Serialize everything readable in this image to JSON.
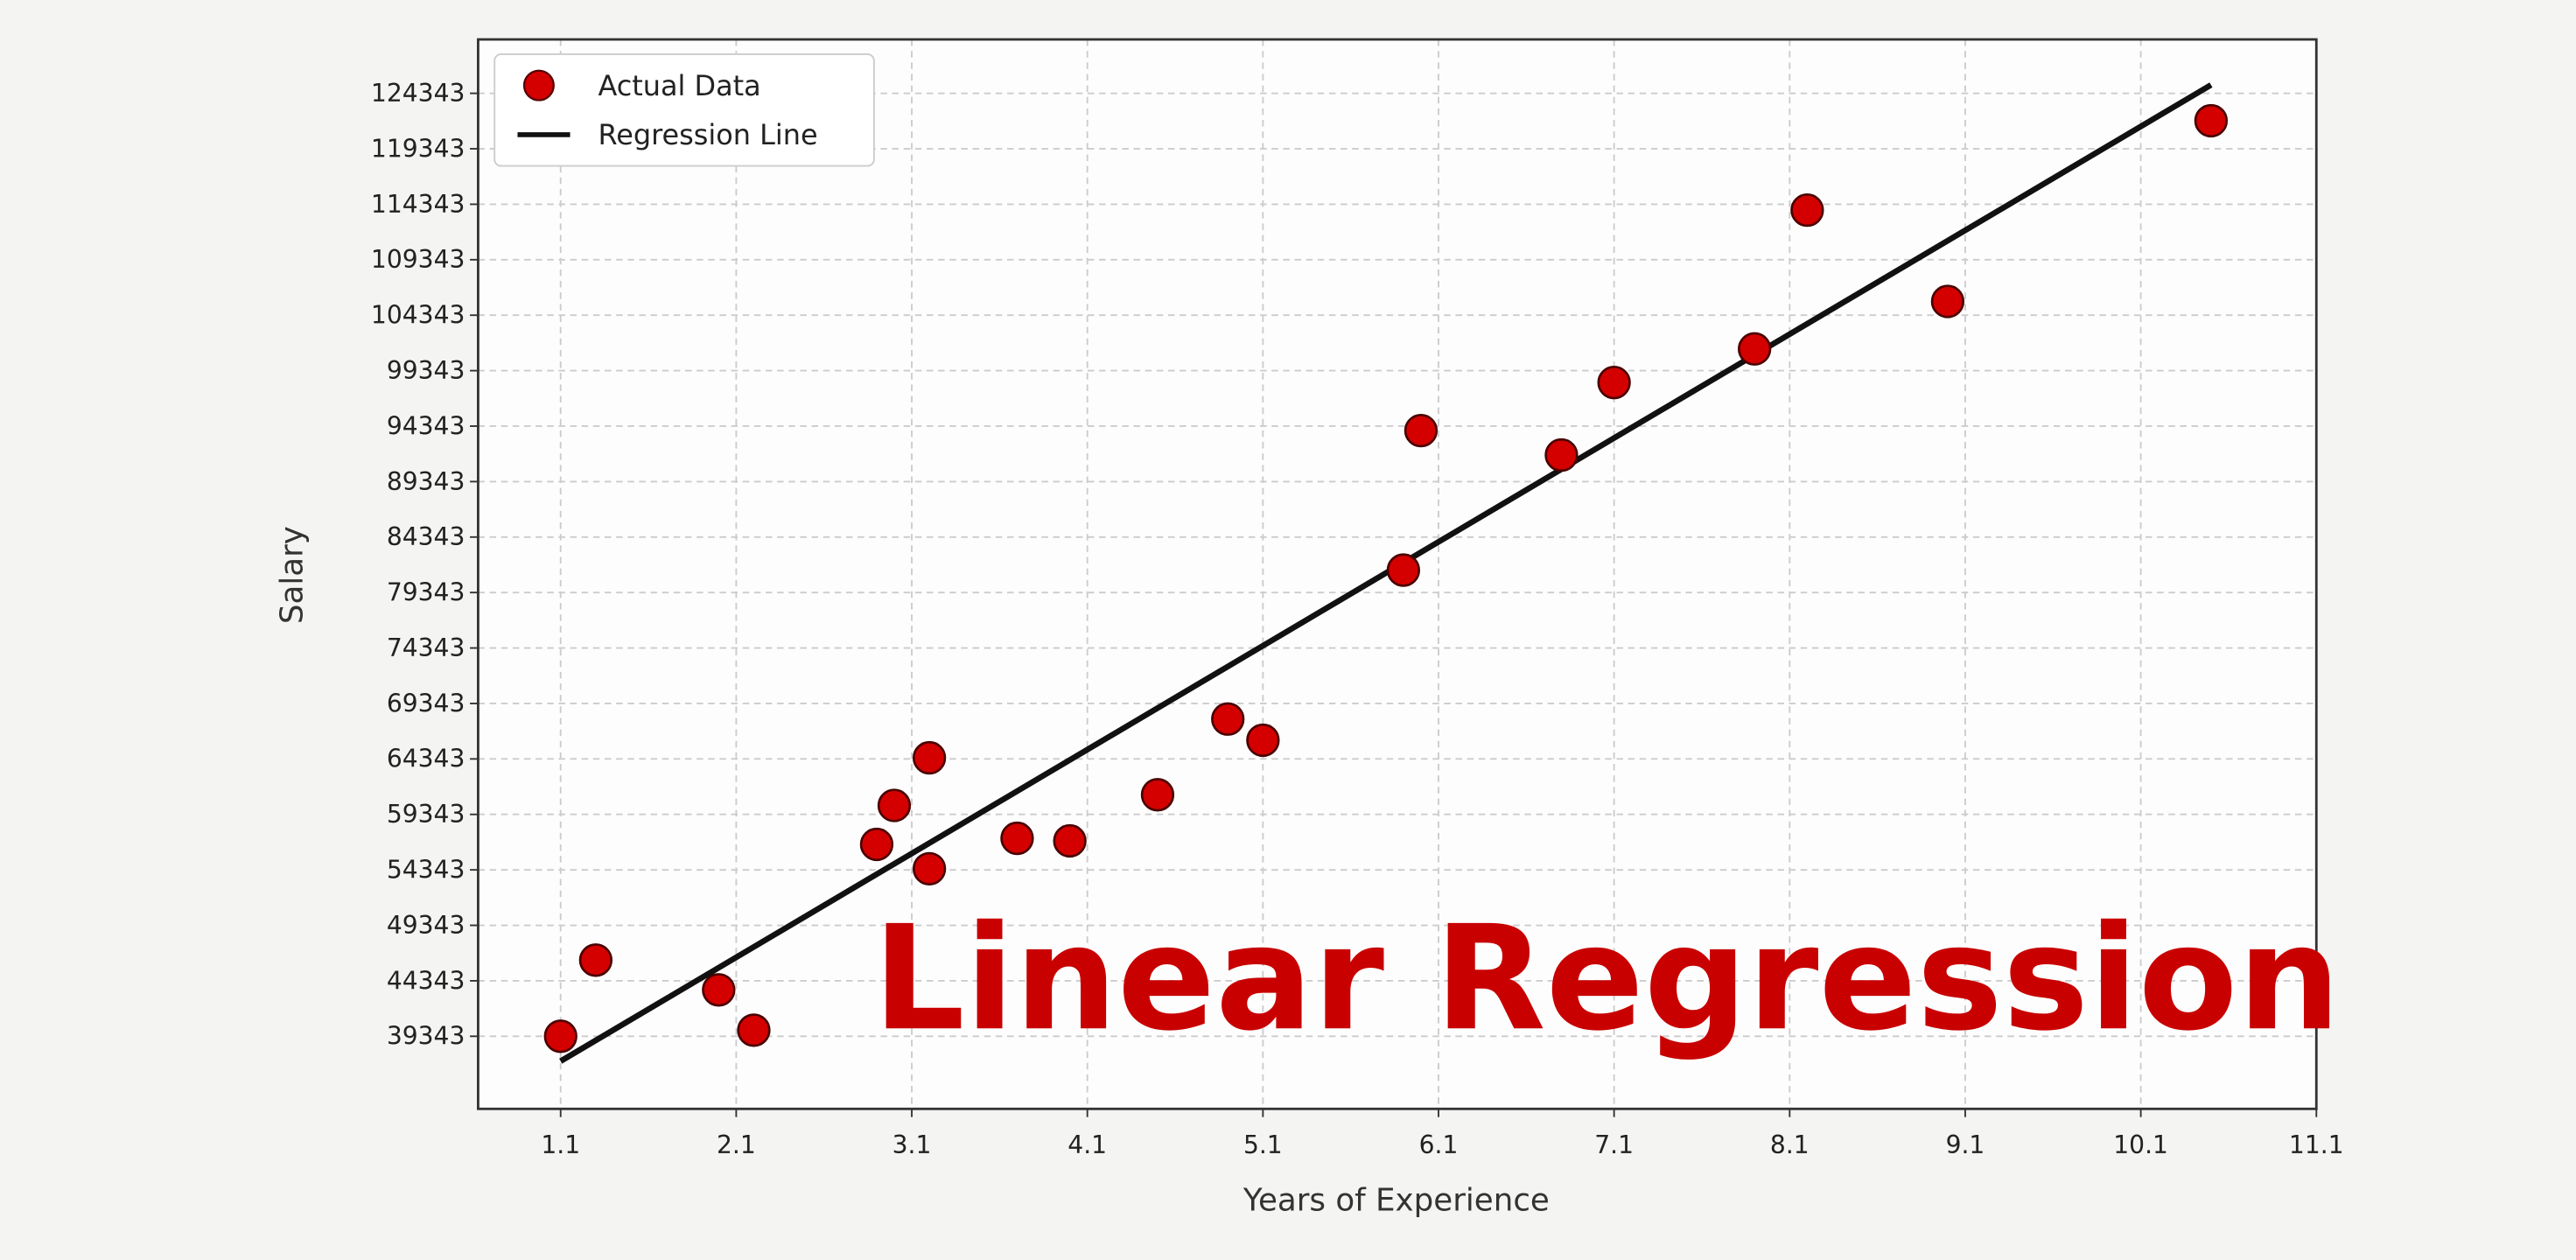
{
  "chart_data": {
    "type": "scatter",
    "xlabel": "Years of Experience",
    "ylabel": "Salary",
    "xlim": [
      0.63,
      11.1
    ],
    "ylim": [
      32800,
      129200
    ],
    "x_ticks": [
      "1.1",
      "2.1",
      "3.1",
      "4.1",
      "5.1",
      "6.1",
      "7.1",
      "8.1",
      "9.1",
      "10.1",
      "11.1"
    ],
    "y_ticks": [
      "39343",
      "44343",
      "49343",
      "54343",
      "59343",
      "64343",
      "69343",
      "74343",
      "79343",
      "84343",
      "89343",
      "94343",
      "99343",
      "104343",
      "109343",
      "114343",
      "119343",
      "124343"
    ],
    "grid": true,
    "legend_position": "top-left",
    "series": [
      {
        "name": "Actual Data",
        "kind": "scatter",
        "color": "#d40000",
        "points": [
          [
            1.1,
            39343
          ],
          [
            1.3,
            46205
          ],
          [
            2.0,
            43525
          ],
          [
            2.2,
            39891
          ],
          [
            2.9,
            56642
          ],
          [
            3.0,
            60150
          ],
          [
            3.2,
            54445
          ],
          [
            3.2,
            64445
          ],
          [
            3.7,
            57189
          ],
          [
            4.0,
            56957
          ],
          [
            4.5,
            61111
          ],
          [
            4.9,
            67938
          ],
          [
            5.1,
            66029
          ],
          [
            5.9,
            81363
          ],
          [
            6.0,
            93940
          ],
          [
            6.8,
            91738
          ],
          [
            7.1,
            98273
          ],
          [
            7.9,
            101302
          ],
          [
            8.2,
            113812
          ],
          [
            9.0,
            105582
          ],
          [
            10.5,
            121872
          ]
        ]
      },
      {
        "name": "Regression Line",
        "kind": "line",
        "color": "#111111",
        "points": [
          [
            1.1,
            37100
          ],
          [
            10.5,
            125100
          ]
        ]
      }
    ],
    "annotation": "Linear Regression",
    "annotation_color": "#c80000"
  }
}
